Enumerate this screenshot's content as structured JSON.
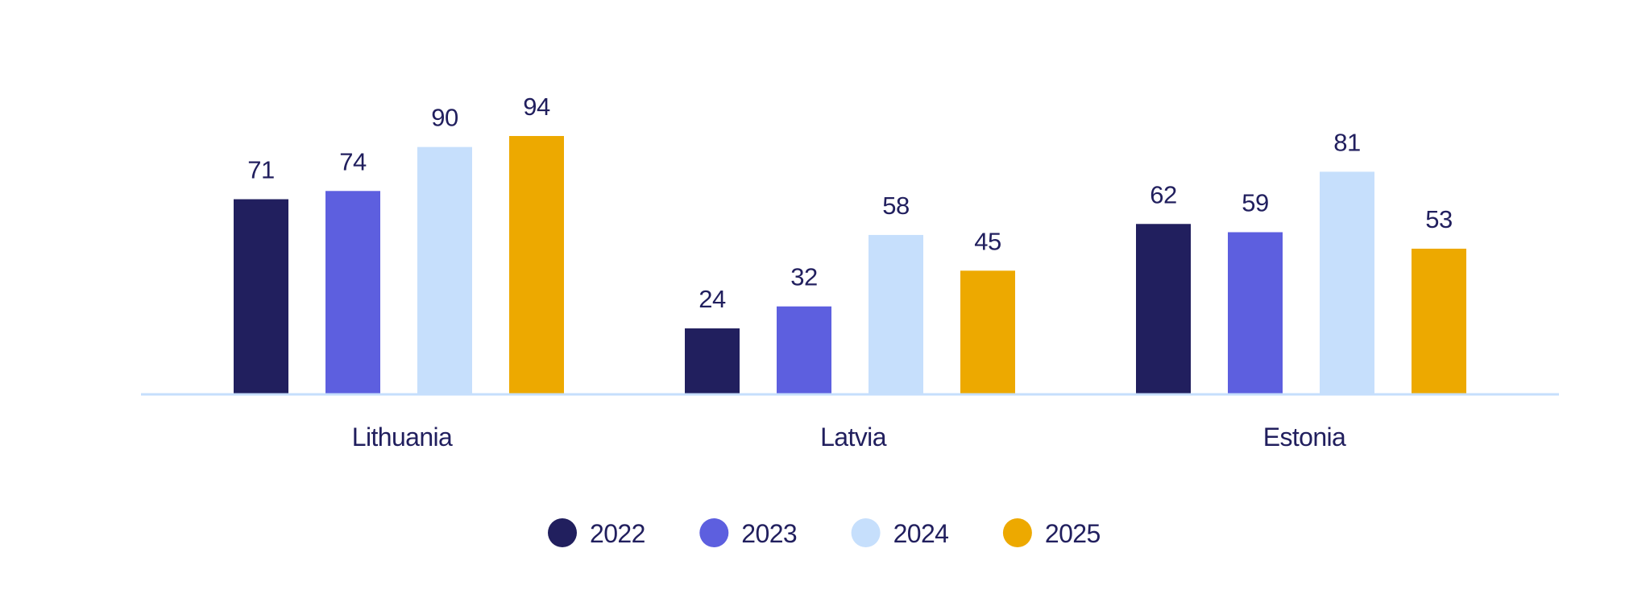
{
  "chart_data": {
    "type": "bar",
    "title": "",
    "xlabel": "",
    "ylabel": "",
    "ylim": [
      0,
      100
    ],
    "grid": false,
    "legend_position": "bottom-center",
    "categories": [
      "Lithuania",
      "Latvia",
      "Estonia"
    ],
    "series": [
      {
        "name": "2022",
        "color": "#211F5E",
        "values": [
          71,
          24,
          62
        ]
      },
      {
        "name": "2023",
        "color": "#5D5FDF",
        "values": [
          74,
          32,
          59
        ]
      },
      {
        "name": "2024",
        "color": "#C6DFFC",
        "values": [
          90,
          58,
          81
        ]
      },
      {
        "name": "2025",
        "color": "#EDA900",
        "values": [
          94,
          45,
          53
        ]
      }
    ],
    "axis_color": "#C6DFFC",
    "text_color": "#211F5E"
  }
}
